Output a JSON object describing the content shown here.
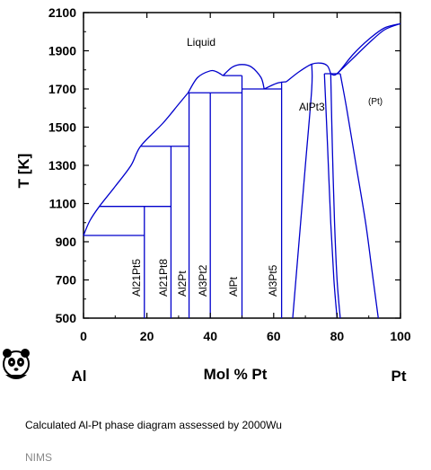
{
  "chart_data": {
    "type": "phase-diagram",
    "ylabel": "T [K]",
    "xlabel": "Mol % Pt",
    "xlim": [
      0,
      100
    ],
    "ylim": [
      500,
      2100
    ],
    "x_ticks": [
      0,
      20,
      40,
      60,
      80,
      100
    ],
    "y_ticks": [
      500,
      700,
      900,
      1100,
      1300,
      1500,
      1700,
      1900,
      2100
    ],
    "left_element": "Al",
    "right_element": "Pt",
    "line_color": "#0000cc",
    "phase_labels": {
      "liquid": "Liquid",
      "alpt3": "AlPt3",
      "pt": "(Pt)",
      "al21pt5": "Al21Pt5",
      "al21pt8": "Al21Pt8",
      "al2pt": "Al2Pt",
      "al3pt2": "Al3Pt2",
      "alpt": "AlPt",
      "al3pt5": "Al3Pt5"
    },
    "curves": {
      "liquidus_al_side": [
        [
          0,
          933
        ],
        [
          2,
          1010
        ],
        [
          5,
          1085
        ],
        [
          10,
          1190
        ],
        [
          15,
          1300
        ],
        [
          18,
          1400
        ],
        [
          25,
          1520
        ],
        [
          30,
          1620
        ],
        [
          33,
          1680
        ]
      ],
      "liquidus_al3pt2_dome": [
        [
          33,
          1680
        ],
        [
          36,
          1760
        ],
        [
          40,
          1795
        ],
        [
          42,
          1790
        ],
        [
          44,
          1770
        ]
      ],
      "liquidus_alpt_dome": [
        [
          44,
          1770
        ],
        [
          47,
          1815
        ],
        [
          50,
          1828
        ],
        [
          53,
          1815
        ],
        [
          56,
          1760
        ],
        [
          57,
          1700
        ]
      ],
      "liquidus_al3pt5_dome": [
        [
          57,
          1700
        ],
        [
          61,
          1730
        ],
        [
          64,
          1738
        ]
      ],
      "liquidus_alpt3_dome": [
        [
          64,
          1738
        ],
        [
          68,
          1790
        ],
        [
          72,
          1830
        ],
        [
          75,
          1835
        ],
        [
          77,
          1820
        ],
        [
          78,
          1780
        ]
      ],
      "liquidus_pt_side": [
        [
          78,
          1780
        ],
        [
          80,
          1780
        ],
        [
          85,
          1880
        ],
        [
          90,
          1960
        ],
        [
          95,
          2020
        ],
        [
          100,
          2042
        ]
      ],
      "solidus_pt": [
        [
          80,
          1780
        ],
        [
          85,
          1860
        ],
        [
          90,
          1940
        ],
        [
          95,
          2010
        ],
        [
          100,
          2042
        ]
      ],
      "alpt3_left_boundary": [
        [
          72,
          1830
        ],
        [
          72,
          1700
        ],
        [
          70,
          1300
        ],
        [
          68,
          900
        ],
        [
          66,
          500
        ]
      ],
      "alpt3_right_boundary": [
        [
          76,
          1780
        ],
        [
          77,
          1400
        ],
        [
          78,
          1000
        ],
        [
          79,
          700
        ],
        [
          80,
          500
        ]
      ],
      "alpt3_right_inner": [
        [
          78,
          1780
        ],
        [
          78.5,
          1400
        ],
        [
          79.2,
          1000
        ],
        [
          80,
          700
        ],
        [
          81,
          500
        ]
      ],
      "pt_left_boundary": [
        [
          81,
          1780
        ],
        [
          83,
          1600
        ],
        [
          86,
          1300
        ],
        [
          89,
          1000
        ],
        [
          91,
          750
        ],
        [
          93,
          500
        ]
      ],
      "vertical_lines": [
        [
          19.2,
          500,
          1085
        ],
        [
          27.6,
          500,
          1400
        ],
        [
          33.3,
          500,
          1680
        ],
        [
          40,
          500,
          1680
        ],
        [
          50,
          500,
          1770
        ],
        [
          62.5,
          500,
          1738
        ]
      ],
      "horizontal_lines": [
        [
          0,
          19.2,
          933
        ],
        [
          5,
          27.6,
          1085
        ],
        [
          18,
          33.3,
          1400
        ],
        [
          33,
          40,
          1680
        ],
        [
          40,
          50,
          1680
        ],
        [
          44,
          50,
          1770
        ],
        [
          50,
          62.5,
          1700
        ],
        [
          76,
          81,
          1780
        ]
      ]
    }
  },
  "footer": {
    "caption": "Calculated Al-Pt  phase diagram assessed by 2000Wu",
    "credit": "NIMS"
  }
}
